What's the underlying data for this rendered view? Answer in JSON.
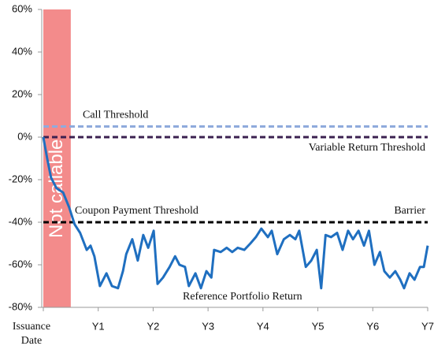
{
  "chart_data": {
    "type": "line",
    "region": {
      "label": "Not callable",
      "x": [
        0,
        0.5
      ],
      "color": "#f38b8b"
    },
    "thresholds": [
      {
        "value": 5,
        "color": "#8faadc",
        "labels": [
          "Call Threshold"
        ]
      },
      {
        "value": 0,
        "color": "#3b2150",
        "labels": [
          "Variable Return Threshold"
        ]
      },
      {
        "value": -40,
        "color": "#000000",
        "labels": [
          "Coupon Payment Threshold",
          "Barrier"
        ]
      }
    ],
    "x": [
      0,
      0.07,
      0.14,
      0.24,
      0.36,
      0.47,
      0.57,
      0.67,
      0.79,
      0.86,
      0.93,
      1.03,
      1.15,
      1.25,
      1.36,
      1.45,
      1.51,
      1.62,
      1.72,
      1.82,
      1.91,
      2.01,
      2.08,
      2.18,
      2.3,
      2.4,
      2.48,
      2.58,
      2.65,
      2.77,
      2.87,
      2.97,
      3.06,
      3.11,
      3.23,
      3.34,
      3.44,
      3.54,
      3.66,
      3.77,
      3.87,
      3.97,
      4.09,
      4.16,
      4.26,
      4.38,
      4.49,
      4.59,
      4.66,
      4.78,
      4.88,
      4.98,
      5.06,
      5.14,
      5.24,
      5.35,
      5.45,
      5.55,
      5.64,
      5.74,
      5.84,
      5.93,
      6.03,
      6.13,
      6.21,
      6.31,
      6.41,
      6.5,
      6.57,
      6.67,
      6.76,
      6.86,
      6.93,
      7.0
    ],
    "series": [
      {
        "name": "Reference Portfolio Return",
        "color": "#1f6fc0",
        "values": [
          0,
          -10,
          -19,
          -24,
          -26,
          -33,
          -41,
          -45,
          -53,
          -51,
          -56,
          -70,
          -64,
          -70,
          -71,
          -63,
          -55,
          -48,
          -58,
          -46,
          -52,
          -44,
          -69,
          -66,
          -61,
          -56,
          -60,
          -61,
          -70,
          -64,
          -71,
          -63,
          -66,
          -53,
          -54,
          -52,
          -54,
          -52,
          -53,
          -50,
          -47,
          -43,
          -47,
          -44,
          -55,
          -48,
          -46,
          -48,
          -44,
          -61,
          -58,
          -53,
          -71,
          -46,
          -47,
          -45,
          -53,
          -44,
          -48,
          -44,
          -51,
          -44,
          -60,
          -54,
          -63,
          -66,
          -63,
          -67,
          -71,
          -64,
          -67,
          -61,
          -61,
          -51
        ]
      }
    ],
    "xlim": [
      0,
      7
    ],
    "xticks": [
      {
        "value": 0,
        "label": "Issuance Date"
      },
      {
        "value": 1,
        "label": "Y1"
      },
      {
        "value": 2,
        "label": "Y2"
      },
      {
        "value": 3,
        "label": "Y3"
      },
      {
        "value": 4,
        "label": "Y4"
      },
      {
        "value": 5,
        "label": "Y5"
      },
      {
        "value": 6,
        "label": "Y6"
      },
      {
        "value": 7,
        "label": "Y7"
      }
    ],
    "ylim": [
      -80,
      60
    ],
    "yticks": [
      {
        "value": -80,
        "label": "-80%"
      },
      {
        "value": -60,
        "label": "-60%"
      },
      {
        "value": -40,
        "label": "-40%"
      },
      {
        "value": -20,
        "label": "-20%"
      },
      {
        "value": 0,
        "label": "0%"
      },
      {
        "value": 20,
        "label": "20%"
      },
      {
        "value": 40,
        "label": "40%"
      },
      {
        "value": 60,
        "label": "60%"
      }
    ]
  }
}
